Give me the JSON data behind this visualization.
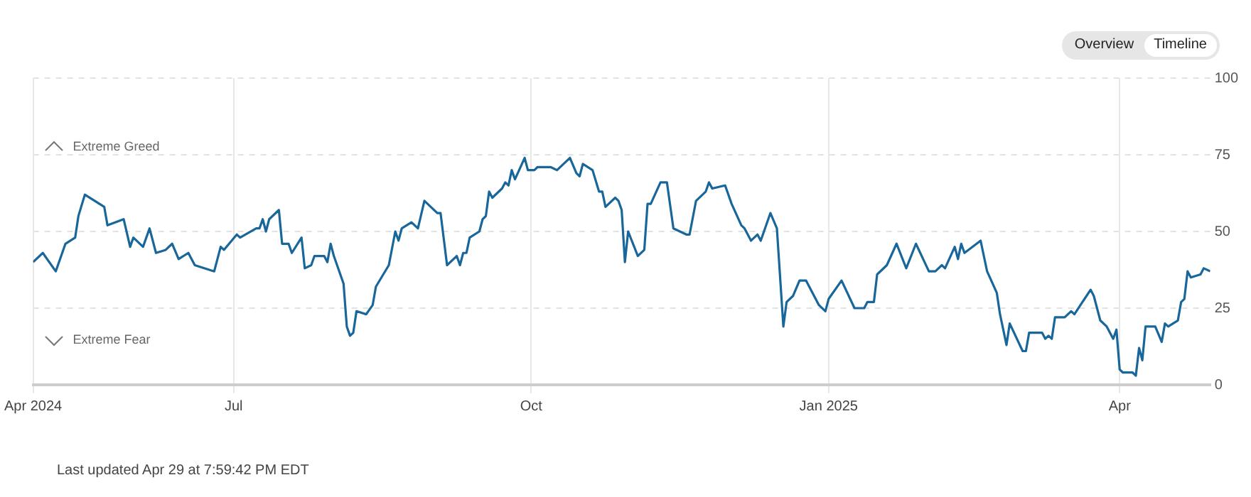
{
  "chart_data": {
    "type": "line",
    "annotations": [
      "Extreme Greed",
      "Extreme Fear",
      "Last updated Apr 29 at 7:59:42 PM EDT",
      "Overview",
      "Timeline"
    ],
    "xlim": [
      "2024-04-30",
      "2025-04-29"
    ],
    "xticks": [
      {
        "value": "2024-04-30",
        "label": "Apr 2024"
      },
      {
        "value": "2024-07-01",
        "label": "Jul"
      },
      {
        "value": "2024-10-01",
        "label": "Oct"
      },
      {
        "value": "2025-01-01",
        "label": "Jan 2025"
      },
      {
        "value": "2025-04-01",
        "label": "Apr"
      }
    ],
    "ylim": [
      0,
      100
    ],
    "yticks": [
      0,
      25,
      50,
      75,
      100
    ],
    "grid": true,
    "legend": false,
    "x": [
      "2024-04-30",
      "2024-05-03",
      "2024-05-07",
      "2024-05-10",
      "2024-05-13",
      "2024-05-14",
      "2024-05-16",
      "2024-05-22",
      "2024-05-23",
      "2024-05-28",
      "2024-05-30",
      "2024-05-31",
      "2024-06-03",
      "2024-06-05",
      "2024-06-07",
      "2024-06-10",
      "2024-06-12",
      "2024-06-14",
      "2024-06-17",
      "2024-06-19",
      "2024-06-25",
      "2024-06-27",
      "2024-06-28",
      "2024-07-02",
      "2024-07-03",
      "2024-07-08",
      "2024-07-09",
      "2024-07-10",
      "2024-07-11",
      "2024-07-12",
      "2024-07-15",
      "2024-07-16",
      "2024-07-18",
      "2024-07-19",
      "2024-07-22",
      "2024-07-23",
      "2024-07-25",
      "2024-07-26",
      "2024-07-29",
      "2024-07-30",
      "2024-07-31",
      "2024-08-01",
      "2024-08-04",
      "2024-08-05",
      "2024-08-06",
      "2024-08-07",
      "2024-08-08",
      "2024-08-11",
      "2024-08-13",
      "2024-08-14",
      "2024-08-18",
      "2024-08-20",
      "2024-08-21",
      "2024-08-22",
      "2024-08-25",
      "2024-08-27",
      "2024-08-29",
      "2024-09-02",
      "2024-09-03",
      "2024-09-05",
      "2024-09-08",
      "2024-09-09",
      "2024-09-10",
      "2024-09-11",
      "2024-09-12",
      "2024-09-15",
      "2024-09-16",
      "2024-09-17",
      "2024-09-18",
      "2024-09-19",
      "2024-09-22",
      "2024-09-23",
      "2024-09-24",
      "2024-09-25",
      "2024-09-26",
      "2024-09-29",
      "2024-09-30",
      "2024-10-02",
      "2024-10-03",
      "2024-10-07",
      "2024-10-09",
      "2024-10-13",
      "2024-10-15",
      "2024-10-16",
      "2024-10-17",
      "2024-10-20",
      "2024-10-22",
      "2024-10-23",
      "2024-10-24",
      "2024-10-27",
      "2024-10-28",
      "2024-10-29",
      "2024-10-30",
      "2024-10-31",
      "2024-11-03",
      "2024-11-05",
      "2024-11-06",
      "2024-11-07",
      "2024-11-10",
      "2024-11-12",
      "2024-11-14",
      "2024-11-16",
      "2024-11-18",
      "2024-11-19",
      "2024-11-21",
      "2024-11-24",
      "2024-11-25",
      "2024-11-26",
      "2024-11-30",
      "2024-12-02",
      "2024-12-05",
      "2024-12-06",
      "2024-12-08",
      "2024-12-10",
      "2024-12-11",
      "2024-12-14",
      "2024-12-16",
      "2024-12-18",
      "2024-12-19",
      "2024-12-21",
      "2024-12-23",
      "2024-12-25",
      "2024-12-29",
      "2024-12-31",
      "2025-01-01",
      "2025-01-05",
      "2025-01-09",
      "2025-01-12",
      "2025-01-13",
      "2025-01-15",
      "2025-01-16",
      "2025-01-19",
      "2025-01-22",
      "2025-01-25",
      "2025-01-28",
      "2025-02-01",
      "2025-02-03",
      "2025-02-05",
      "2025-02-06",
      "2025-02-09",
      "2025-02-10",
      "2025-02-11",
      "2025-02-12",
      "2025-02-17",
      "2025-02-19",
      "2025-02-22",
      "2025-02-23",
      "2025-02-25",
      "2025-02-26",
      "2025-03-02",
      "2025-03-03",
      "2025-03-04",
      "2025-03-08",
      "2025-03-09",
      "2025-03-10",
      "2025-03-11",
      "2025-03-12",
      "2025-03-15",
      "2025-03-17",
      "2025-03-18",
      "2025-03-23",
      "2025-03-24",
      "2025-03-26",
      "2025-03-28",
      "2025-03-30",
      "2025-03-31",
      "2025-04-01",
      "2025-04-02",
      "2025-04-05",
      "2025-04-06",
      "2025-04-07",
      "2025-04-08",
      "2025-04-09",
      "2025-04-12",
      "2025-04-14",
      "2025-04-15",
      "2025-04-16",
      "2025-04-19",
      "2025-04-20",
      "2025-04-21",
      "2025-04-22",
      "2025-04-23",
      "2025-04-26",
      "2025-04-27",
      "2025-04-29"
    ],
    "series": [
      {
        "color": "#19679a",
        "values": [
          40,
          43,
          37,
          46,
          48,
          55,
          62,
          58,
          52,
          54,
          45,
          48,
          45,
          51,
          43,
          44,
          46,
          41,
          43,
          39,
          37,
          45,
          44,
          49,
          48,
          51,
          51,
          54,
          50,
          54,
          57,
          46,
          46,
          43,
          48,
          38,
          39,
          42,
          42,
          40,
          46,
          42,
          33,
          19,
          16,
          17,
          24,
          23,
          26,
          32,
          39,
          50,
          47,
          51,
          53,
          51,
          60,
          56,
          56,
          39,
          42,
          39,
          43,
          43,
          48,
          50,
          54,
          55,
          63,
          61,
          64,
          66,
          65,
          70,
          67,
          74,
          70,
          70,
          71,
          71,
          70,
          74,
          69,
          68,
          72,
          70,
          63,
          63,
          58,
          61,
          60,
          57,
          40,
          50,
          42,
          44,
          59,
          59,
          66,
          66,
          51,
          50,
          49,
          49,
          60,
          63,
          66,
          64,
          65,
          59,
          52,
          51,
          47,
          49,
          47,
          56,
          51,
          19,
          27,
          29,
          34,
          34,
          26,
          24,
          28,
          34,
          25,
          25,
          27,
          27,
          36,
          39,
          46,
          38,
          46,
          37,
          37,
          39,
          38,
          45,
          41,
          46,
          43,
          47,
          37,
          30,
          23,
          13,
          20,
          11,
          11,
          17,
          17,
          15,
          16,
          15,
          22,
          22,
          24,
          23,
          31,
          29,
          21,
          19,
          15,
          18,
          5,
          4,
          4,
          3,
          12,
          8,
          19,
          19,
          14,
          20,
          19,
          21,
          27,
          28,
          37,
          35,
          36,
          38,
          37
        ]
      }
    ]
  }
}
